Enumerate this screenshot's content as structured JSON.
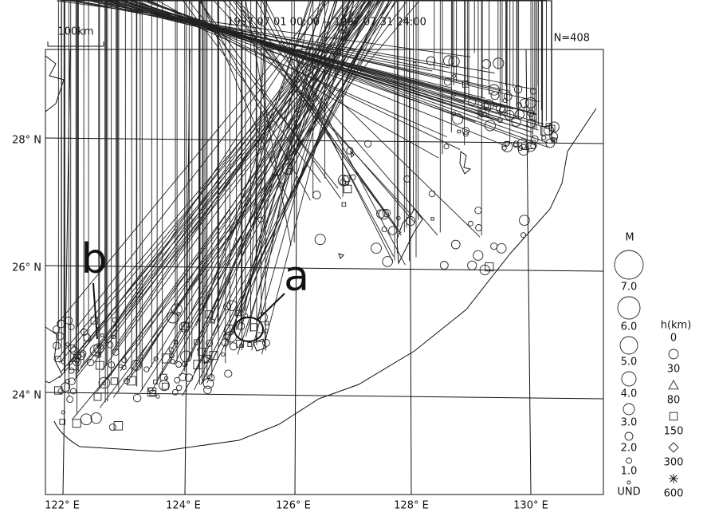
{
  "header": {
    "period": "1997 07 01 00:00 -- 1997 07 31 24:00",
    "count": "N=408",
    "scale": "100km"
  },
  "map": {
    "lat_labels": [
      "28° N",
      "26° N",
      "24° N"
    ],
    "lon_labels": [
      "122° E",
      "124° E",
      "126° E",
      "128° E",
      "130° E"
    ],
    "annotations": [
      "a",
      "b"
    ]
  },
  "legend": {
    "magnitude_title": "M",
    "magnitudes": [
      "7.0",
      "6.0",
      "5.0",
      "4.0",
      "3.0",
      "2.0",
      "1.0",
      "UND"
    ],
    "depth_title": "h(km)",
    "depths": [
      "0",
      "30",
      "80",
      "150",
      "300",
      "600"
    ]
  }
}
